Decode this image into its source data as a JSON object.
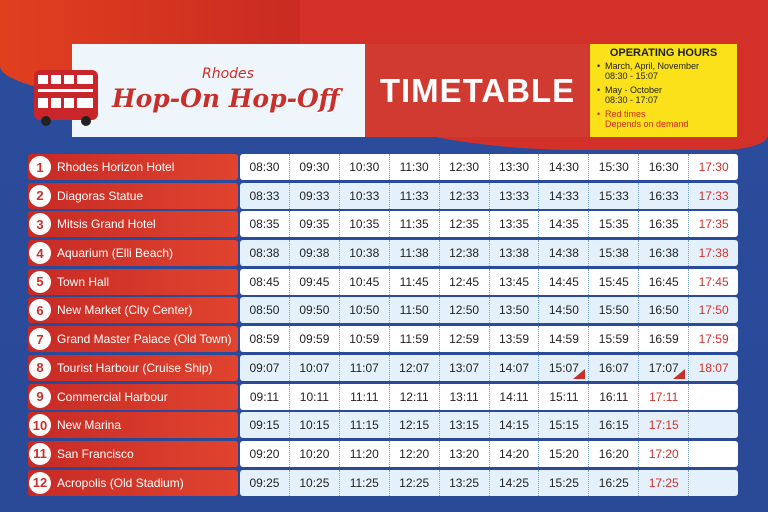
{
  "header": {
    "brand_small": "Rhodes",
    "brand_large": "Hop-On Hop-Off",
    "title": "TIMETABLE"
  },
  "operating_hours": {
    "title": "OPERATING HOURS",
    "items": [
      {
        "label": "March, April, November",
        "hours": "08:30 - 15:07"
      },
      {
        "label": "May - October",
        "hours": "08:30 - 17:07"
      }
    ],
    "note_label": "Red times",
    "note_text": "Depends on demand"
  },
  "colors": {
    "red": "#d0302a",
    "blue": "#2a4a98",
    "yellow": "#fbe11a"
  },
  "stops": [
    {
      "n": "1",
      "name": "Rhodes Horizon Hotel",
      "times": [
        "08:30",
        "09:30",
        "10:30",
        "11:30",
        "12:30",
        "13:30",
        "14:30",
        "15:30",
        "16:30",
        "17:30"
      ],
      "red": [
        9
      ]
    },
    {
      "n": "2",
      "name": "Diagoras Statue",
      "times": [
        "08:33",
        "09:33",
        "10:33",
        "11:33",
        "12:33",
        "13:33",
        "14:33",
        "15:33",
        "16:33",
        "17:33"
      ],
      "red": [
        9
      ]
    },
    {
      "n": "3",
      "name": "Mitsis Grand Hotel",
      "times": [
        "08:35",
        "09:35",
        "10:35",
        "11:35",
        "12:35",
        "13:35",
        "14:35",
        "15:35",
        "16:35",
        "17:35"
      ],
      "red": [
        9
      ]
    },
    {
      "n": "4",
      "name": "Aquarium (Elli Beach)",
      "times": [
        "08:38",
        "09:38",
        "10:38",
        "11:38",
        "12:38",
        "13:38",
        "14:38",
        "15:38",
        "16:38",
        "17:38"
      ],
      "red": [
        9
      ]
    },
    {
      "n": "5",
      "name": "Town Hall",
      "times": [
        "08:45",
        "09:45",
        "10:45",
        "11:45",
        "12:45",
        "13:45",
        "14:45",
        "15:45",
        "16:45",
        "17:45"
      ],
      "red": [
        9
      ]
    },
    {
      "n": "6",
      "name": "New Market (City Center)",
      "times": [
        "08:50",
        "09:50",
        "10:50",
        "11:50",
        "12:50",
        "13:50",
        "14:50",
        "15:50",
        "16:50",
        "17:50"
      ],
      "red": [
        9
      ]
    },
    {
      "n": "7",
      "name": "Grand Master Palace (Old Town)",
      "times": [
        "08:59",
        "09:59",
        "10:59",
        "11:59",
        "12:59",
        "13:59",
        "14:59",
        "15:59",
        "16:59",
        "17:59"
      ],
      "red": [
        9
      ]
    },
    {
      "n": "8",
      "name": "Tourist Harbour (Cruise Ship)",
      "times": [
        "09:07",
        "10:07",
        "11:07",
        "12:07",
        "13:07",
        "14:07",
        "15:07",
        "16:07",
        "17:07",
        "18:07"
      ],
      "red": [
        9
      ],
      "flags": [
        6,
        8
      ]
    },
    {
      "n": "9",
      "name": "Commercial Harbour",
      "times": [
        "09:11",
        "10:11",
        "11:11",
        "12:11",
        "13:11",
        "14:11",
        "15:11",
        "16:11",
        "17:11",
        ""
      ],
      "red": [
        8
      ]
    },
    {
      "n": "10",
      "name": "New Marina",
      "times": [
        "09:15",
        "10:15",
        "11:15",
        "12:15",
        "13:15",
        "14:15",
        "15:15",
        "16:15",
        "17:15",
        ""
      ],
      "red": [
        8
      ]
    },
    {
      "n": "11",
      "name": "San Francisco",
      "times": [
        "09:20",
        "10:20",
        "11:20",
        "12:20",
        "13:20",
        "14:20",
        "15:20",
        "16:20",
        "17:20",
        ""
      ],
      "red": [
        8
      ]
    },
    {
      "n": "12",
      "name": "Acropolis (Old Stadium)",
      "times": [
        "09:25",
        "10:25",
        "11:25",
        "12:25",
        "13:25",
        "14:25",
        "15:25",
        "16:25",
        "17:25",
        ""
      ],
      "red": [
        8
      ]
    }
  ]
}
